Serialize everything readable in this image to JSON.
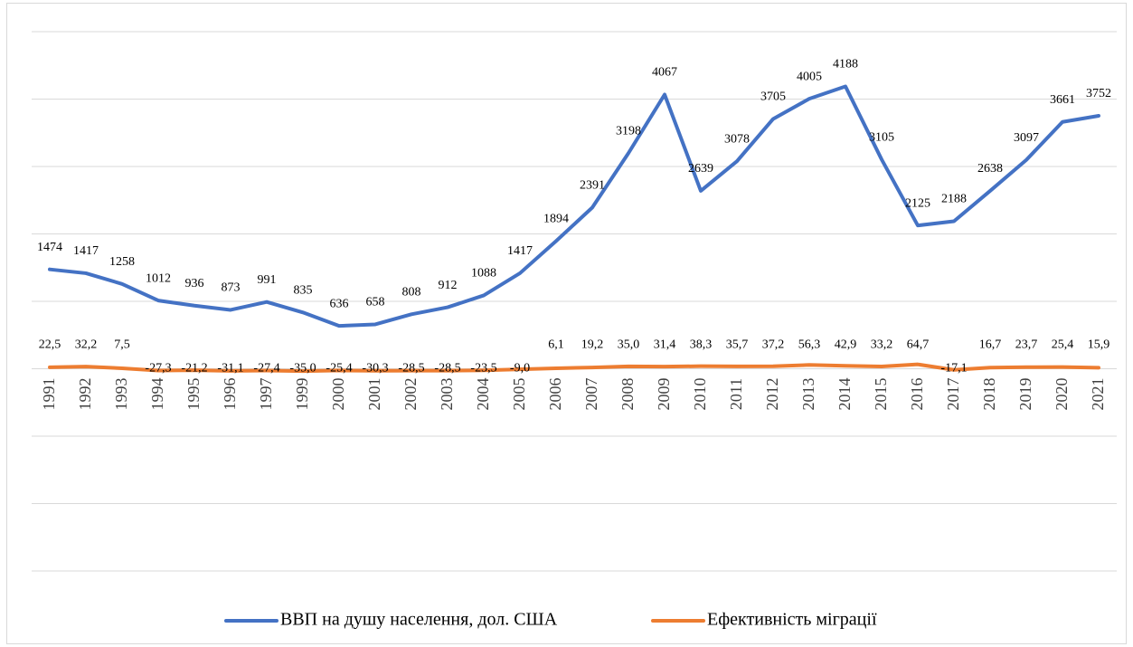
{
  "chart_data": {
    "type": "line",
    "categories": [
      "1991",
      "1992",
      "1993",
      "1994",
      "1995",
      "1996",
      "1997",
      "1999",
      "2000",
      "2001",
      "2002",
      "2003",
      "2004",
      "2005",
      "2006",
      "2007",
      "2008",
      "2009",
      "2010",
      "2011",
      "2012",
      "2013",
      "2014",
      "2015",
      "2016",
      "2017",
      "2018",
      "2019",
      "2020",
      "2021"
    ],
    "series": [
      {
        "name": "ВВП на душу населення, дол. США",
        "color": "#4472c4",
        "values": [
          1474,
          1417,
          1258,
          1012,
          936,
          873,
          991,
          835,
          636,
          658,
          808,
          912,
          1088,
          1417,
          1894,
          2391,
          3198,
          4067,
          2639,
          3078,
          3705,
          4005,
          4188,
          3105,
          2125,
          2188,
          2638,
          3097,
          3661,
          3752
        ]
      },
      {
        "name": "Ефективність міграції",
        "color": "#ed7d31",
        "values": [
          22.5,
          32.2,
          7.5,
          -27.3,
          -21.2,
          -31.1,
          -27.4,
          -35.0,
          -25.4,
          -30.3,
          -28.5,
          -28.5,
          -23.5,
          -9.0,
          6.1,
          19.2,
          35.0,
          31.4,
          38.3,
          35.7,
          37.2,
          56.3,
          42.9,
          33.2,
          64.7,
          -17.1,
          16.7,
          23.7,
          25.4,
          15.9
        ],
        "value_labels": [
          "22,5",
          "32,2",
          "7,5",
          "-27,3",
          "-21,2",
          "-31,1",
          "-27,4",
          "-35,0",
          "-25,4",
          "-30,3",
          "-28,5",
          "-28,5",
          "-23,5",
          "-9,0",
          "6,1",
          "19,2",
          "35,0",
          "31,4",
          "38,3",
          "35,7",
          "37,2",
          "56,3",
          "42,9",
          "33,2",
          "64,7",
          "-17,1",
          "16,7",
          "23,7",
          "25,4",
          "15,9"
        ]
      }
    ],
    "ylim": [
      -3000,
      5000
    ],
    "yticks": [
      -3000,
      -2000,
      -1000,
      0,
      1000,
      2000,
      3000,
      4000,
      5000
    ],
    "grid": true,
    "legend": "bottom"
  }
}
